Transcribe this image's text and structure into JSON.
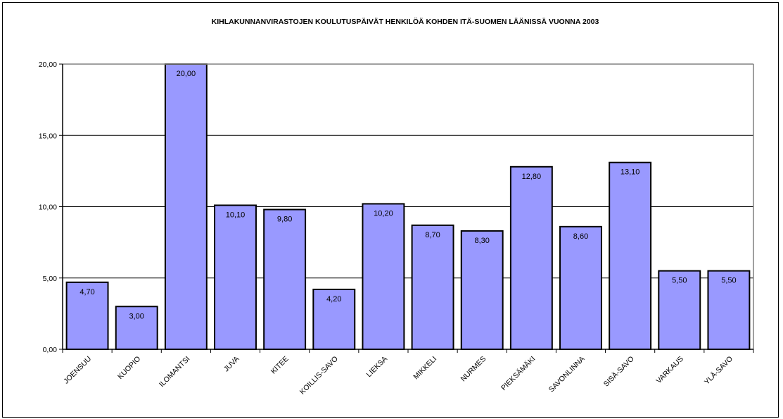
{
  "chart_data": {
    "type": "bar",
    "title": "KIHLAKUNNANVIRASTOJEN KOULUTUSPÄIVÄT HENKILÖÄ KOHDEN ITÄ-SUOMEN LÄÄNISSÄ VUONNA 2003",
    "categories": [
      "JOENSUU",
      "KUOPIO",
      "ILOMANTSI",
      "JUVA",
      "KITEE",
      "KOILLIS-SAVO",
      "LIEKSA",
      "MIKKELI",
      "NURMES",
      "PIEKSÄMÄKI",
      "SAVONLINNA",
      "SISÄ-SAVO",
      "VARKAUS",
      "YLÄ-SAVO"
    ],
    "values": [
      4.7,
      3.0,
      20.0,
      10.1,
      9.8,
      4.2,
      10.2,
      8.7,
      8.3,
      12.8,
      8.6,
      13.1,
      5.5,
      5.5
    ],
    "data_labels": [
      "4,70",
      "3,00",
      "20,00",
      "10,10",
      "9,80",
      "4,20",
      "10,20",
      "8,70",
      "8,30",
      "12,80",
      "8,60",
      "13,10",
      "5,50",
      "5,50"
    ],
    "y_ticks": [
      "0,00",
      "5,00",
      "10,00",
      "15,00",
      "20,00"
    ],
    "xlabel": "",
    "ylabel": "",
    "ylim": [
      0,
      20
    ],
    "grid": true,
    "legend": "none",
    "colors": {
      "bar": "#9999ff",
      "bar_stroke": "#000000",
      "grid": "#000000",
      "plot_border": "#808080"
    }
  }
}
